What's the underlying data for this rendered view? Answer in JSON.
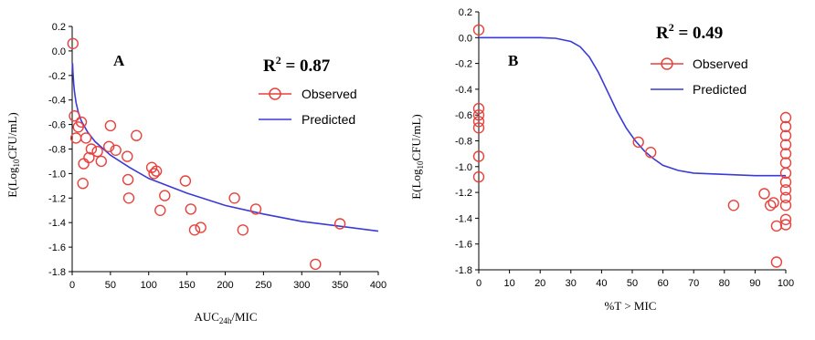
{
  "chart_data": [
    {
      "type": "scatter",
      "panel_label": "A",
      "r2_label": "R",
      "r2_exp": "2",
      "r2_value": " = 0.87",
      "xlabel_main": "AUC",
      "xlabel_sub": "24h",
      "xlabel_rest": "/MIC",
      "ylabel_main": "E(Log",
      "ylabel_sub": "10",
      "ylabel_rest": "CFU/mL)",
      "xlim": [
        0,
        400
      ],
      "ylim": [
        -1.8,
        0.2
      ],
      "xticks": [
        0,
        50,
        100,
        150,
        200,
        250,
        300,
        350,
        400
      ],
      "yticks": [
        0.2,
        0.0,
        -0.2,
        -0.4,
        -0.6,
        -0.8,
        -1.0,
        -1.2,
        -1.4,
        -1.6,
        -1.8
      ],
      "ytick_labels": [
        "0.2",
        "0.0",
        "-0.2",
        "-0.4",
        "-0.6",
        "-0.8",
        "-1.0",
        "-1.2",
        "-1.4",
        "-1.6",
        "-1.8"
      ],
      "legend": [
        "Observed",
        "Predicted"
      ],
      "colors": {
        "observed": "#e8413d",
        "predicted": "#3a3ad6"
      },
      "series": [
        {
          "name": "Observed",
          "kind": "scatter",
          "points": [
            [
              1,
              0.06
            ],
            [
              3,
              -0.53
            ],
            [
              5,
              -0.71
            ],
            [
              8,
              -0.62
            ],
            [
              12,
              -0.58
            ],
            [
              14,
              -1.08
            ],
            [
              15,
              -0.92
            ],
            [
              18,
              -0.71
            ],
            [
              22,
              -0.87
            ],
            [
              25,
              -0.8
            ],
            [
              33,
              -0.82
            ],
            [
              38,
              -0.9
            ],
            [
              48,
              -0.78
            ],
            [
              50,
              -0.61
            ],
            [
              57,
              -0.81
            ],
            [
              72,
              -0.86
            ],
            [
              73,
              -1.05
            ],
            [
              74,
              -1.2
            ],
            [
              84,
              -0.69
            ],
            [
              104,
              -0.95
            ],
            [
              107,
              -1.0
            ],
            [
              110,
              -0.98
            ],
            [
              115,
              -1.3
            ],
            [
              121,
              -1.18
            ],
            [
              148,
              -1.06
            ],
            [
              155,
              -1.29
            ],
            [
              160,
              -1.46
            ],
            [
              168,
              -1.44
            ],
            [
              212,
              -1.2
            ],
            [
              223,
              -1.46
            ],
            [
              240,
              -1.29
            ],
            [
              318,
              -1.74
            ],
            [
              350,
              -1.41
            ]
          ]
        },
        {
          "name": "Predicted",
          "kind": "line",
          "points": [
            [
              0.5,
              -0.1
            ],
            [
              1,
              -0.17
            ],
            [
              2,
              -0.27
            ],
            [
              3,
              -0.33
            ],
            [
              5,
              -0.42
            ],
            [
              8,
              -0.5
            ],
            [
              12,
              -0.57
            ],
            [
              20,
              -0.66
            ],
            [
              30,
              -0.74
            ],
            [
              50,
              -0.85
            ],
            [
              75,
              -0.95
            ],
            [
              100,
              -1.04
            ],
            [
              150,
              -1.16
            ],
            [
              200,
              -1.26
            ],
            [
              250,
              -1.33
            ],
            [
              300,
              -1.39
            ],
            [
              350,
              -1.43
            ],
            [
              400,
              -1.47
            ]
          ]
        }
      ]
    },
    {
      "type": "scatter",
      "panel_label": "B",
      "r2_label": "R",
      "r2_exp": "2",
      "r2_value": " = 0.49",
      "xlabel": "%T > MIC",
      "ylabel_main": "E(Log",
      "ylabel_sub": "10",
      "ylabel_rest": "CFU/mL)",
      "xlim": [
        0,
        100
      ],
      "ylim": [
        -1.8,
        0.2
      ],
      "xticks": [
        0,
        10,
        20,
        30,
        40,
        50,
        60,
        70,
        80,
        90,
        100
      ],
      "yticks": [
        0.2,
        0.0,
        -0.2,
        -0.4,
        -0.6,
        -0.8,
        -1.0,
        -1.2,
        -1.4,
        -1.6,
        -1.8
      ],
      "ytick_labels": [
        "0.2",
        "0.0",
        "-0.2",
        "-0.4",
        "-0.6",
        "-0.8",
        "-1.0",
        "-1.2",
        "-1.4",
        "-1.6",
        "-1.8"
      ],
      "legend": [
        "Observed",
        "Predicted"
      ],
      "colors": {
        "observed": "#e8413d",
        "predicted": "#3a3ad6"
      },
      "series": [
        {
          "name": "Observed",
          "kind": "scatter",
          "points": [
            [
              0,
              0.06
            ],
            [
              0,
              -0.55
            ],
            [
              0,
              -0.6
            ],
            [
              0,
              -0.65
            ],
            [
              0,
              -0.7
            ],
            [
              0,
              -0.92
            ],
            [
              0,
              -1.08
            ],
            [
              52,
              -0.81
            ],
            [
              56,
              -0.89
            ],
            [
              83,
              -1.3
            ],
            [
              93,
              -1.21
            ],
            [
              95,
              -1.3
            ],
            [
              96,
              -1.28
            ],
            [
              97,
              -1.46
            ],
            [
              97,
              -1.74
            ],
            [
              100,
              -0.62
            ],
            [
              100,
              -0.69
            ],
            [
              100,
              -0.76
            ],
            [
              100,
              -0.83
            ],
            [
              100,
              -0.9
            ],
            [
              100,
              -0.97
            ],
            [
              100,
              -1.05
            ],
            [
              100,
              -1.12
            ],
            [
              100,
              -1.18
            ],
            [
              100,
              -1.24
            ],
            [
              100,
              -1.3
            ],
            [
              100,
              -1.41
            ],
            [
              100,
              -1.45
            ]
          ]
        },
        {
          "name": "Predicted",
          "kind": "line",
          "points": [
            [
              0,
              0.0
            ],
            [
              20,
              0.0
            ],
            [
              25,
              -0.005
            ],
            [
              30,
              -0.03
            ],
            [
              33,
              -0.07
            ],
            [
              36,
              -0.15
            ],
            [
              39,
              -0.27
            ],
            [
              42,
              -0.42
            ],
            [
              45,
              -0.57
            ],
            [
              48,
              -0.7
            ],
            [
              51,
              -0.8
            ],
            [
              54,
              -0.88
            ],
            [
              57,
              -0.94
            ],
            [
              60,
              -0.99
            ],
            [
              65,
              -1.03
            ],
            [
              70,
              -1.05
            ],
            [
              80,
              -1.06
            ],
            [
              90,
              -1.07
            ],
            [
              100,
              -1.07
            ]
          ]
        }
      ]
    }
  ]
}
